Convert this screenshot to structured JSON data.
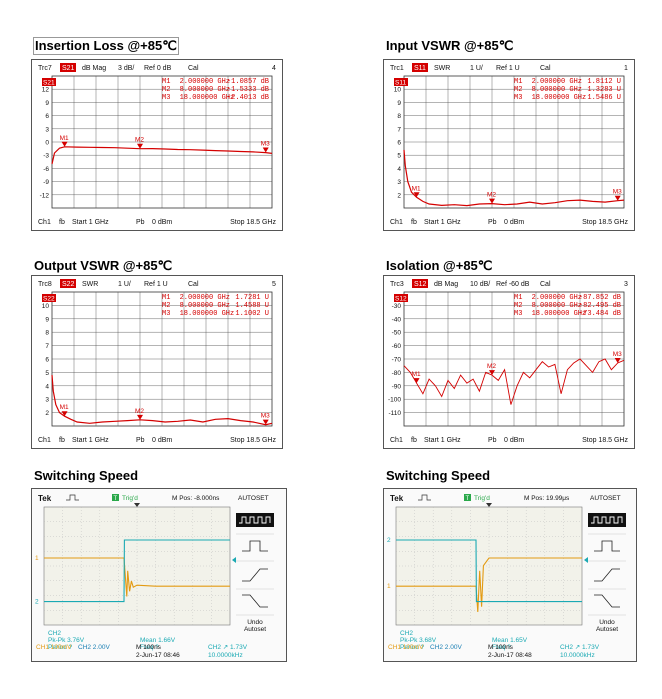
{
  "vna_panels": [
    {
      "id": "insertion-loss",
      "title": "Insertion Loss @+85℃",
      "header": {
        "trc": "Trc7",
        "param": "S21",
        "format": "dB Mag",
        "scale": "3 dB/",
        "ref": "Ref 0 dB",
        "cal": "Cal",
        "num": "4"
      },
      "ref_marker": "S21",
      "markers": [
        {
          "name": "M1",
          "freq": "2.000000 GHz",
          "value": "-1.0857 dB"
        },
        {
          "name": "M2",
          "freq": "8.000000 GHz",
          "value": "-1.5333 dB"
        },
        {
          "name": "M3",
          "freq": "18.000000 GHz",
          "value": "-2.4013 dB"
        }
      ],
      "footer": {
        "ch": "Ch1",
        "fb": "fb",
        "start": "Start 1 GHz",
        "pb": "Pb",
        "power": "0 dBm",
        "stop": "Stop 18.5 GHz"
      }
    },
    {
      "id": "input-vswr",
      "title": "Input VSWR @+85℃",
      "header": {
        "trc": "Trc1",
        "param": "S11",
        "format": "SWR",
        "scale": "1 U/",
        "ref": "Ref 1 U",
        "cal": "Cal",
        "num": "1"
      },
      "ref_marker": "S11",
      "markers": [
        {
          "name": "M1",
          "freq": "2.000000 GHz",
          "value": "1.8112 U"
        },
        {
          "name": "M2",
          "freq": "8.000000 GHz",
          "value": "1.3283 U"
        },
        {
          "name": "M3",
          "freq": "18.000000 GHz",
          "value": "1.5486 U"
        }
      ],
      "footer": {
        "ch": "Ch1",
        "fb": "fb",
        "start": "Start 1 GHz",
        "pb": "Pb",
        "power": "0 dBm",
        "stop": "Stop 18.5 GHz"
      }
    },
    {
      "id": "output-vswr",
      "title": "Output VSWR @+85℃",
      "header": {
        "trc": "Trc8",
        "param": "S22",
        "format": "SWR",
        "scale": "1 U/",
        "ref": "Ref 1 U",
        "cal": "Cal",
        "num": "5"
      },
      "ref_marker": "S22",
      "markers": [
        {
          "name": "M1",
          "freq": "2.000000 GHz",
          "value": "1.7281 U"
        },
        {
          "name": "M2",
          "freq": "8.000000 GHz",
          "value": "1.4588 U"
        },
        {
          "name": "M3",
          "freq": "18.000000 GHz",
          "value": "1.1002 U"
        }
      ],
      "footer": {
        "ch": "Ch1",
        "fb": "fb",
        "start": "Start 1 GHz",
        "pb": "Pb",
        "power": "0 dBm",
        "stop": "Stop 18.5 GHz"
      }
    },
    {
      "id": "isolation",
      "title": "Isolation @+85℃",
      "header": {
        "trc": "Trc3",
        "param": "S12",
        "format": "dB Mag",
        "scale": "10 dB/",
        "ref": "Ref -60 dB",
        "cal": "Cal",
        "num": "3"
      },
      "ref_marker": "S12",
      "markers": [
        {
          "name": "M1",
          "freq": "2.000000 GHz",
          "value": "-87.852 dB"
        },
        {
          "name": "M2",
          "freq": "8.000000 GHz",
          "value": "-82.495 dB"
        },
        {
          "name": "M3",
          "freq": "18.000000 GHz",
          "value": "-73.484 dB"
        }
      ],
      "footer": {
        "ch": "Ch1",
        "fb": "fb",
        "start": "Start 1 GHz",
        "pb": "Pb",
        "power": "0 dBm",
        "stop": "Stop 18.5 GHz"
      }
    }
  ],
  "scope_panels": [
    {
      "id": "switching-speed-1",
      "title": "Switching Speed",
      "brand": "Tek",
      "trig_badge": "T",
      "trig_state": "Trig'd",
      "mpos": "M Pos: -8.000ns",
      "menu_title": "AUTOSET",
      "menu_undo": "Undo",
      "menu_autoset": "Autoset",
      "ch_markers": [
        "1",
        "2"
      ],
      "meas": {
        "ch_label": "CH2",
        "pkpk": "Pk-Pk 3.76V",
        "period": "Period ?",
        "mean": "Mean 1.66V",
        "freq": "Freq ?"
      },
      "status": {
        "ch1": "CH1 100mV",
        "ch2": "CH2 2.00V",
        "time": "M 100ns",
        "date": "2-Jun-17 08:46",
        "trig": "CH2 ↗ 1.73V",
        "freq": "10.0000kHz"
      }
    },
    {
      "id": "switching-speed-2",
      "title": "Switching Speed",
      "brand": "Tek",
      "trig_badge": "T",
      "trig_state": "Trig'd",
      "mpos": "M Pos: 19.99μs",
      "menu_title": "AUTOSET",
      "menu_undo": "Undo",
      "menu_autoset": "Autoset",
      "ch_markers": [
        "1",
        "2"
      ],
      "meas": {
        "ch_label": "CH2",
        "pkpk": "Pk-Pk 3.68V",
        "period": "Period ?",
        "mean": "Mean 1.65V",
        "freq": "Freq ?"
      },
      "status": {
        "ch1": "CH1 100mV",
        "ch2": "CH2 2.00V",
        "time": "M 100ns",
        "date": "2-Jun-17 08:48",
        "trig": "CH2 ↗ 1.73V",
        "freq": "10.0000kHz"
      }
    }
  ],
  "chart_data": [
    {
      "type": "line",
      "title": "Insertion Loss @+85℃",
      "xlabel": "",
      "ylabel": "",
      "x_range_ghz": [
        1,
        18.5
      ],
      "y_ticks": [
        "12",
        "9",
        "6",
        "3",
        "0",
        "-3",
        "-6",
        "-9",
        "-12"
      ],
      "ylim": [
        -15,
        15
      ],
      "series": [
        {
          "color": "#d40000",
          "x": [
            1,
            1.2,
            1.6,
            2,
            3,
            4,
            5,
            6,
            7,
            8,
            9,
            10,
            11,
            12,
            13,
            14,
            15,
            16,
            17,
            18,
            18.5
          ],
          "y": [
            -5,
            -2.5,
            -1.4,
            -1.09,
            -1.15,
            -1.2,
            -1.25,
            -1.3,
            -1.4,
            -1.53,
            -1.5,
            -1.6,
            -1.7,
            -1.75,
            -1.85,
            -1.95,
            -2.05,
            -2.15,
            -2.25,
            -2.4,
            -2.6
          ]
        }
      ]
    },
    {
      "type": "line",
      "title": "Input VSWR @+85℃",
      "xlabel": "",
      "ylabel": "",
      "x_range_ghz": [
        1,
        18.5
      ],
      "y_ticks": [
        "10",
        "9",
        "8",
        "7",
        "6",
        "5",
        "4",
        "3",
        "2"
      ],
      "ylim": [
        1,
        11
      ],
      "series": [
        {
          "color": "#d40000",
          "x": [
            1,
            1.1,
            1.3,
            1.6,
            2,
            2.5,
            3,
            4,
            5,
            6,
            7,
            8,
            9,
            10,
            11,
            12,
            13,
            14,
            15,
            16,
            17,
            18,
            18.5
          ],
          "y": [
            5.4,
            4.2,
            3.0,
            2.2,
            1.81,
            1.5,
            1.3,
            1.2,
            1.25,
            1.18,
            1.3,
            1.33,
            1.25,
            1.3,
            1.45,
            1.3,
            1.4,
            1.55,
            1.6,
            1.5,
            1.45,
            1.55,
            1.6
          ]
        }
      ]
    },
    {
      "type": "line",
      "title": "Output VSWR @+85℃",
      "xlabel": "",
      "ylabel": "",
      "x_range_ghz": [
        1,
        18.5
      ],
      "y_ticks": [
        "10",
        "9",
        "8",
        "7",
        "6",
        "5",
        "4",
        "3",
        "2"
      ],
      "ylim": [
        1,
        11
      ],
      "series": [
        {
          "color": "#d40000",
          "x": [
            1,
            1.1,
            1.3,
            1.6,
            2,
            2.5,
            3,
            4,
            5,
            6,
            7,
            8,
            9,
            10,
            11,
            12,
            13,
            14,
            15,
            16,
            17,
            18,
            18.5
          ],
          "y": [
            4.8,
            3.6,
            2.6,
            2.0,
            1.73,
            1.5,
            1.3,
            1.2,
            1.3,
            1.35,
            1.4,
            1.46,
            1.4,
            1.3,
            1.35,
            1.45,
            1.3,
            1.5,
            1.55,
            1.4,
            1.3,
            1.1,
            1.2
          ]
        }
      ]
    },
    {
      "type": "line",
      "title": "Isolation @+85℃",
      "xlabel": "",
      "ylabel": "",
      "x_range_ghz": [
        1,
        18.5
      ],
      "y_ticks": [
        "-30",
        "-40",
        "-50",
        "-60",
        "-70",
        "-80",
        "-90",
        "-100",
        "-110"
      ],
      "ylim": [
        -120,
        -20
      ],
      "series": [
        {
          "color": "#d40000",
          "x": [
            1,
            1.5,
            2,
            2.5,
            3,
            3.5,
            4,
            4.5,
            5,
            5.5,
            6,
            6.5,
            7,
            7.5,
            8,
            8.5,
            9,
            9.5,
            10,
            10.5,
            11,
            11.5,
            12,
            12.5,
            13,
            13.5,
            14,
            14.5,
            15,
            15.5,
            16,
            16.5,
            17,
            17.5,
            18,
            18.5
          ],
          "y": [
            -75,
            -80,
            -88,
            -96,
            -85,
            -90,
            -98,
            -86,
            -92,
            -82,
            -88,
            -85,
            -94,
            -80,
            -82,
            -86,
            -78,
            -104,
            -90,
            -80,
            -84,
            -78,
            -72,
            -76,
            -74,
            -96,
            -78,
            -73,
            -70,
            -75,
            -80,
            -72,
            -70,
            -78,
            -73,
            -71
          ]
        }
      ]
    },
    {
      "type": "line",
      "title": "Switching Speed",
      "xlabel": "",
      "ylabel": "",
      "x_divisions": 10,
      "y_divisions": 8,
      "series": [
        {
          "name": "CH1",
          "color": "#e39a12",
          "x": [
            0,
            4.3,
            4.45,
            4.5,
            4.6,
            4.7,
            4.8,
            5,
            6,
            10
          ],
          "y": [
            1.15,
            1.15,
            0.4,
            0.9,
            0.5,
            0.7,
            0.58,
            0.62,
            0.6,
            0.6
          ]
        },
        {
          "name": "CH2",
          "color": "#1aa9b3",
          "x": [
            0,
            4.3,
            4.32,
            10
          ],
          "y": [
            0.3,
            0.3,
            1.5,
            1.5
          ]
        }
      ]
    },
    {
      "type": "line",
      "title": "Switching Speed",
      "xlabel": "",
      "ylabel": "",
      "x_divisions": 10,
      "y_divisions": 8,
      "series": [
        {
          "name": "CH1",
          "color": "#e39a12",
          "x": [
            0,
            4.3,
            4.4,
            4.5,
            4.6,
            4.7,
            4.9,
            5,
            6,
            10
          ],
          "y": [
            0.6,
            0.6,
            0.1,
            0.9,
            0.2,
            1.0,
            1.1,
            1.15,
            1.15,
            1.15
          ]
        },
        {
          "name": "CH2",
          "color": "#1aa9b3",
          "x": [
            0,
            4.3,
            4.32,
            10
          ],
          "y": [
            1.5,
            1.5,
            0.3,
            0.3
          ]
        }
      ]
    }
  ]
}
